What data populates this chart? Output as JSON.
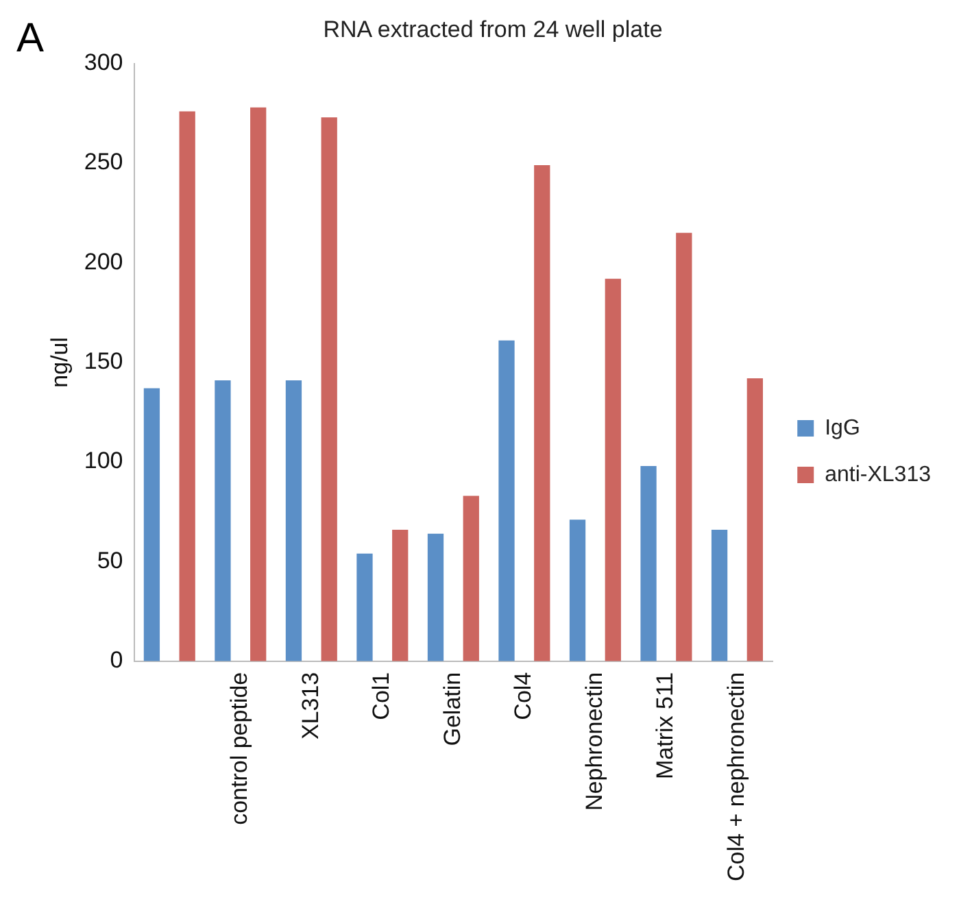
{
  "chart_data": {
    "type": "bar",
    "title": "RNA extracted from 24 well plate",
    "ylabel": "ng/ul",
    "annotations": [
      "A"
    ],
    "categories": [
      null,
      "control peptide",
      "XL313",
      "Col1",
      "Gelatin",
      "Col4",
      "Nephronectin",
      "Matrix 511",
      "Col4 + nephronectin"
    ],
    "series": [
      {
        "name": "IgG",
        "color": "#5b8fc7",
        "values": [
          137,
          141,
          141,
          54,
          64,
          161,
          71,
          98,
          66
        ]
      },
      {
        "name": "anti-XL313",
        "color": "#cc6660",
        "values": [
          276,
          278,
          273,
          66,
          83,
          249,
          192,
          215,
          142
        ]
      }
    ],
    "ylim": [
      0,
      300
    ],
    "yticks": [
      0,
      50,
      100,
      150,
      200,
      250,
      300
    ],
    "grid": false,
    "legend": "right"
  }
}
